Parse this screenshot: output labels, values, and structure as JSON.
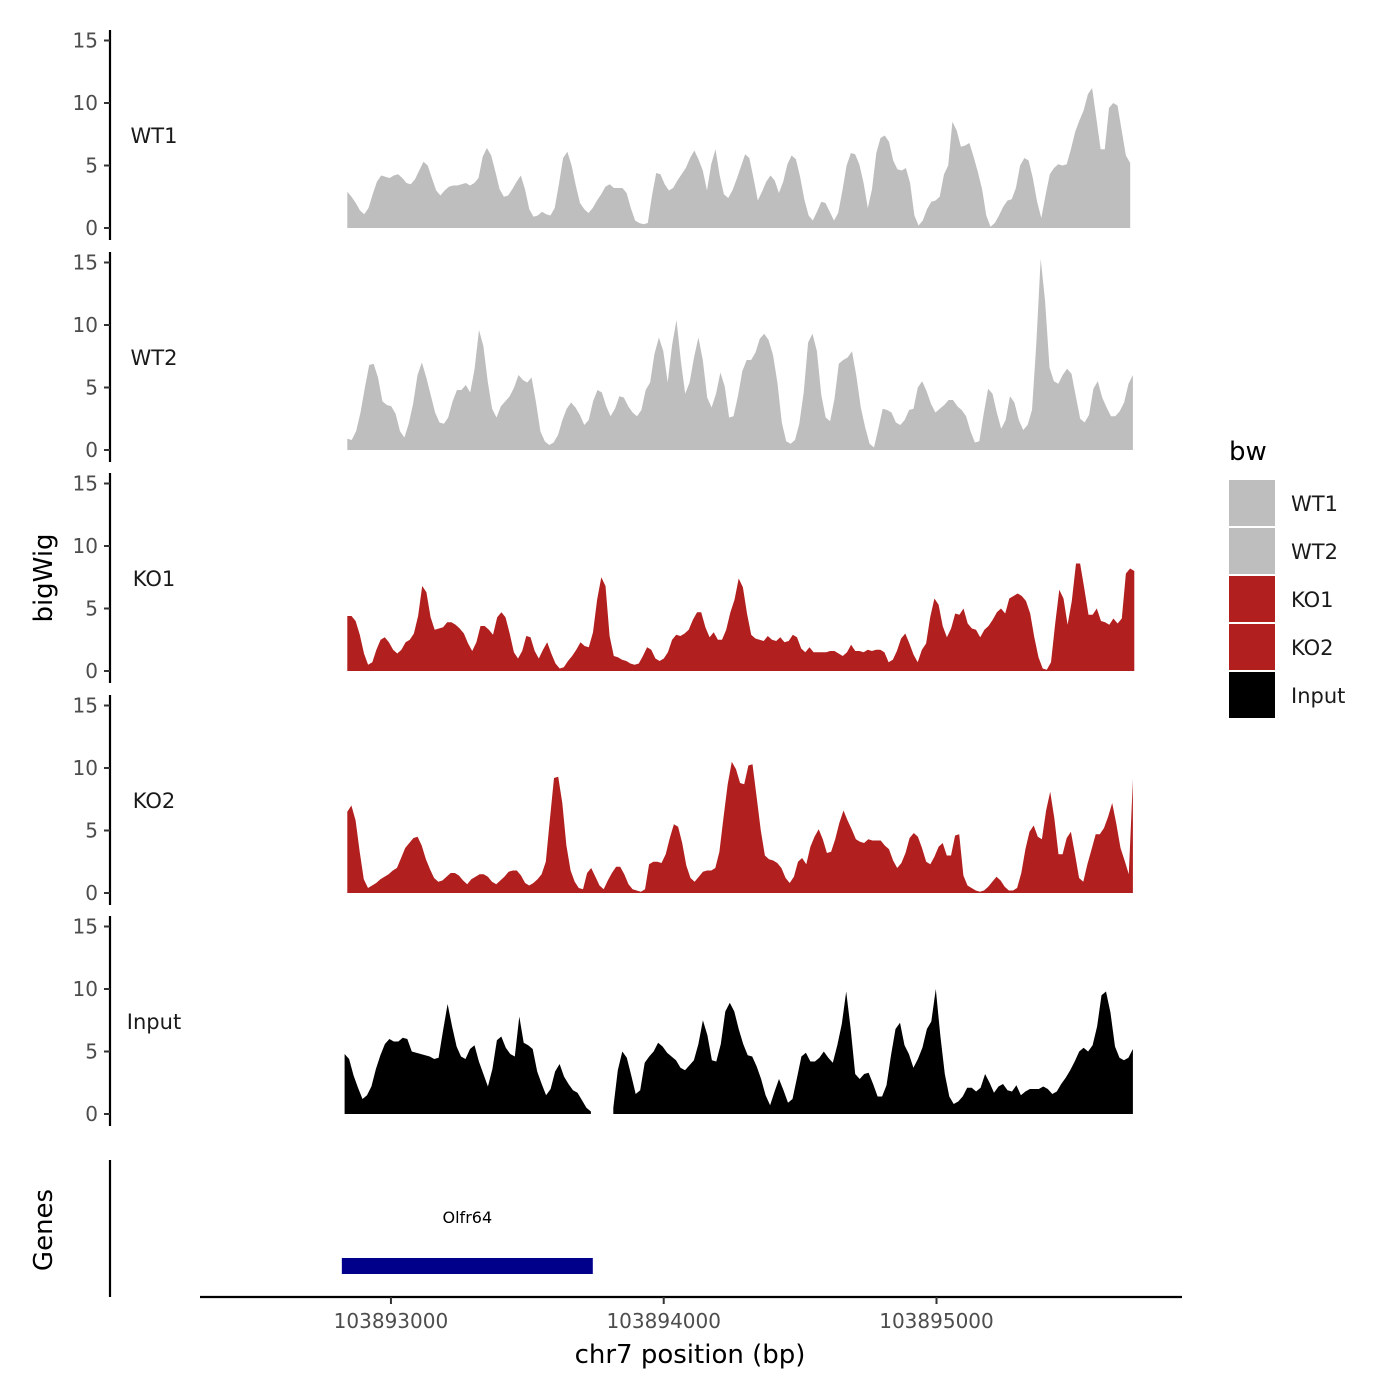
{
  "chart_data": {
    "type": "area",
    "ylabel": "bigWig",
    "xlabel": "chr7 position (bp)",
    "xlim": [
      103892300,
      103895900
    ],
    "ylim": [
      0,
      15
    ],
    "y_ticks": [
      0,
      5,
      10,
      15
    ],
    "x_ticks": [
      103893000,
      103894000,
      103895000
    ],
    "x_tick_labels": [
      "103893000",
      "103894000",
      "103895000"
    ],
    "legend": {
      "title": "bw",
      "placement": "right",
      "entries": [
        {
          "name": "WT1",
          "color": "#bebebe"
        },
        {
          "name": "WT2",
          "color": "#bebebe"
        },
        {
          "name": "KO1",
          "color": "#b21f1f"
        },
        {
          "name": "KO2",
          "color": "#b21f1f"
        },
        {
          "name": "Input",
          "color": "#000000"
        }
      ]
    },
    "genes_panel_label": "Genes",
    "genes": [
      {
        "name": "Olfr64",
        "start": 103892820,
        "end": 103893740,
        "color": "#00008b"
      }
    ],
    "series": [
      {
        "name": "WT1",
        "color": "#bebebe",
        "x_start": 103892840,
        "x_end": 103895710,
        "values": [
          2.9,
          2.5,
          2.0,
          1.4,
          1.1,
          1.6,
          2.7,
          3.7,
          4.2,
          4.1,
          4.0,
          4.2,
          4.3,
          4.0,
          3.6,
          3.5,
          3.9,
          4.6,
          5.3,
          5.0,
          4.0,
          3.0,
          2.6,
          3.0,
          3.3,
          3.4,
          3.4,
          3.5,
          3.6,
          3.4,
          3.6,
          4.0,
          5.7,
          6.4,
          5.8,
          4.5,
          3.1,
          2.5,
          2.6,
          3.1,
          3.7,
          4.2,
          3.1,
          1.5,
          0.9,
          1.0,
          1.3,
          1.1,
          1.0,
          1.6,
          3.5,
          5.6,
          6.1,
          5.0,
          3.4,
          2.0,
          1.5,
          1.2,
          1.6,
          2.2,
          2.7,
          3.3,
          3.5,
          3.2,
          3.2,
          3.2,
          2.8,
          1.6,
          0.6,
          0.4,
          0.3,
          0.4,
          2.6,
          4.4,
          4.3,
          3.5,
          3.0,
          3.2,
          3.8,
          4.3,
          4.8,
          5.6,
          6.2,
          5.5,
          4.6,
          3.0,
          5.1,
          6.3,
          4.2,
          2.7,
          2.4,
          3.0,
          3.9,
          4.9,
          5.9,
          5.6,
          4.0,
          2.2,
          2.9,
          3.7,
          4.2,
          3.8,
          2.8,
          3.7,
          5.1,
          5.8,
          5.5,
          4.1,
          2.3,
          1.0,
          0.6,
          1.3,
          2.1,
          2.0,
          1.3,
          0.6,
          1.2,
          3.0,
          5.0,
          6.0,
          5.9,
          5.1,
          3.6,
          1.6,
          3.1,
          6.0,
          7.2,
          7.4,
          6.9,
          5.4,
          4.7,
          4.6,
          4.8,
          3.6,
          1.0,
          0.2,
          0.6,
          1.5,
          2.1,
          2.2,
          2.5,
          4.3,
          5.0,
          8.5,
          7.8,
          6.5,
          6.6,
          6.8,
          5.7,
          4.5,
          3.1,
          1.0,
          0.1,
          0.4,
          1.0,
          1.7,
          2.2,
          2.3,
          3.2,
          5.0,
          5.6,
          5.4,
          4.0,
          2.1,
          0.8,
          2.6,
          4.3,
          4.8,
          5.1,
          5.0,
          5.1,
          6.3,
          7.7,
          8.6,
          9.4,
          10.7,
          11.2,
          8.8,
          6.3,
          6.3,
          9.6,
          10.0,
          9.8,
          7.8,
          5.8,
          5.2
        ]
      },
      {
        "name": "WT2",
        "color": "#bebebe",
        "x_start": 103892840,
        "x_end": 103895720,
        "values": [
          0.9,
          0.8,
          1.5,
          3.0,
          5.0,
          6.8,
          6.9,
          5.8,
          3.9,
          3.6,
          3.5,
          2.9,
          1.5,
          1.0,
          2.1,
          3.7,
          6.0,
          7.0,
          5.8,
          4.4,
          3.0,
          2.2,
          2.1,
          2.6,
          3.9,
          4.8,
          4.8,
          5.2,
          4.6,
          6.5,
          9.6,
          8.3,
          5.5,
          3.3,
          2.6,
          3.5,
          3.9,
          4.3,
          5.0,
          6.0,
          5.6,
          5.4,
          5.8,
          3.8,
          1.5,
          0.7,
          0.4,
          0.6,
          1.2,
          2.4,
          3.3,
          3.8,
          3.4,
          2.8,
          2.0,
          2.4,
          3.9,
          4.8,
          4.6,
          3.5,
          2.7,
          3.3,
          4.3,
          4.2,
          3.5,
          3.0,
          2.7,
          3.2,
          4.8,
          5.4,
          7.7,
          9.0,
          7.9,
          5.4,
          8.4,
          10.4,
          7.1,
          4.5,
          5.4,
          7.4,
          9.0,
          7.2,
          4.2,
          3.4,
          4.5,
          6.2,
          5.1,
          2.6,
          2.7,
          4.3,
          6.3,
          7.2,
          7.2,
          7.8,
          8.9,
          9.3,
          8.8,
          7.6,
          5.4,
          2.2,
          0.7,
          0.5,
          0.8,
          2.1,
          4.6,
          8.6,
          9.3,
          7.9,
          4.4,
          2.6,
          2.3,
          4.1,
          6.9,
          7.2,
          7.4,
          7.9,
          5.9,
          3.4,
          1.8,
          0.5,
          0.2,
          1.7,
          3.3,
          3.2,
          3.0,
          2.2,
          2.0,
          2.4,
          3.2,
          3.3,
          5.0,
          5.5,
          4.7,
          3.7,
          3.0,
          3.3,
          3.6,
          4.0,
          4.0,
          3.5,
          3.2,
          2.7,
          1.5,
          0.6,
          0.7,
          2.9,
          4.9,
          4.5,
          3.0,
          1.7,
          2.4,
          4.3,
          3.8,
          2.4,
          1.6,
          2.0,
          3.2,
          8.5,
          15.3,
          11.9,
          6.6,
          5.5,
          5.3,
          6.0,
          6.5,
          6.1,
          4.3,
          2.5,
          2.2,
          2.8,
          4.9,
          5.5,
          4.2,
          3.4,
          2.7,
          2.7,
          3.1,
          3.8,
          5.3,
          6.0
        ]
      },
      {
        "name": "KO1",
        "color": "#b21f1f",
        "x_start": 103892840,
        "x_end": 103895725,
        "values": [
          4.4,
          4.4,
          4.0,
          2.9,
          1.4,
          0.5,
          0.7,
          1.7,
          2.5,
          2.7,
          2.3,
          1.7,
          1.4,
          1.7,
          2.3,
          2.5,
          3.0,
          4.4,
          6.8,
          6.3,
          4.3,
          3.3,
          3.4,
          3.5,
          3.9,
          3.9,
          3.7,
          3.4,
          3.0,
          2.2,
          1.6,
          2.3,
          3.6,
          3.6,
          3.3,
          2.9,
          4.3,
          4.7,
          4.3,
          3.0,
          1.5,
          1.0,
          1.6,
          2.8,
          2.7,
          1.6,
          1.0,
          1.7,
          2.3,
          1.4,
          0.6,
          0.2,
          0.3,
          0.8,
          1.2,
          1.7,
          2.3,
          2.0,
          1.9,
          3.1,
          5.7,
          7.5,
          6.8,
          2.8,
          1.2,
          1.1,
          0.9,
          0.8,
          0.6,
          0.5,
          0.6,
          1.2,
          1.9,
          1.7,
          1.0,
          0.8,
          1.0,
          1.5,
          2.5,
          2.9,
          2.8,
          3.0,
          3.3,
          4.1,
          4.7,
          4.7,
          3.5,
          2.7,
          3.1,
          2.5,
          2.5,
          3.3,
          4.7,
          5.7,
          7.4,
          6.7,
          4.6,
          2.9,
          2.6,
          2.5,
          2.4,
          2.8,
          2.5,
          2.4,
          2.7,
          2.3,
          2.4,
          2.9,
          2.7,
          1.8,
          1.5,
          1.9,
          1.5,
          1.5,
          1.5,
          1.5,
          1.6,
          1.6,
          1.4,
          1.2,
          1.5,
          2.1,
          1.6,
          1.6,
          1.5,
          1.7,
          1.6,
          1.7,
          1.7,
          1.5,
          0.7,
          0.9,
          1.6,
          2.6,
          3.0,
          2.2,
          1.3,
          0.7,
          1.7,
          2.2,
          4.3,
          5.8,
          5.3,
          3.6,
          2.7,
          3.4,
          4.6,
          4.5,
          5.0,
          3.8,
          3.4,
          3.3,
          2.7,
          3.3,
          3.6,
          4.1,
          4.7,
          5.0,
          4.6,
          5.8,
          6.0,
          6.2,
          6.0,
          5.6,
          4.6,
          2.7,
          1.1,
          0.2,
          0.1,
          0.7,
          3.8,
          6.5,
          5.8,
          3.7,
          5.6,
          8.6,
          8.6,
          6.6,
          4.5,
          4.5,
          5.0,
          4.0,
          3.9,
          3.7,
          4.2,
          3.8,
          4.2,
          7.8,
          8.2,
          8.0
        ]
      },
      {
        "name": "KO2",
        "color": "#b21f1f",
        "x_start": 103892840,
        "x_end": 103895720,
        "values": [
          6.5,
          7.0,
          5.8,
          3.3,
          1.1,
          0.4,
          0.6,
          0.8,
          1.1,
          1.3,
          1.5,
          1.8,
          2.0,
          2.8,
          3.6,
          4.0,
          4.4,
          4.5,
          3.8,
          2.7,
          1.9,
          1.2,
          0.9,
          1.0,
          1.3,
          1.6,
          1.6,
          1.4,
          1.0,
          0.7,
          1.1,
          1.3,
          1.5,
          1.5,
          1.3,
          0.9,
          0.7,
          1.0,
          1.3,
          1.7,
          1.8,
          1.8,
          1.4,
          0.8,
          0.6,
          0.8,
          1.1,
          1.5,
          2.5,
          5.9,
          9.2,
          9.3,
          7.2,
          3.8,
          1.8,
          0.9,
          0.4,
          0.3,
          1.6,
          2.0,
          1.3,
          0.6,
          0.3,
          1.0,
          1.6,
          2.1,
          2.1,
          1.5,
          0.7,
          0.3,
          0.2,
          0.1,
          0.3,
          2.3,
          2.5,
          2.5,
          2.4,
          3.1,
          4.4,
          5.5,
          5.3,
          4.0,
          2.2,
          1.2,
          0.9,
          1.3,
          1.7,
          1.8,
          1.8,
          2.0,
          3.3,
          6.1,
          8.7,
          10.5,
          9.9,
          8.8,
          8.7,
          10.2,
          10.3,
          7.7,
          5.0,
          3.0,
          2.7,
          2.6,
          2.4,
          2.0,
          1.2,
          0.8,
          1.3,
          2.5,
          2.8,
          2.3,
          3.7,
          4.5,
          5.1,
          4.3,
          3.2,
          3.3,
          4.3,
          5.6,
          6.6,
          5.8,
          5.1,
          4.3,
          4.1,
          4.0,
          4.3,
          4.2,
          4.2,
          4.2,
          3.8,
          3.5,
          2.6,
          2.0,
          2.4,
          3.2,
          4.4,
          4.8,
          4.5,
          3.6,
          2.5,
          2.3,
          2.9,
          3.7,
          4.0,
          3.0,
          3.0,
          4.6,
          4.7,
          1.4,
          0.6,
          0.4,
          0.2,
          0.1,
          0.2,
          0.5,
          0.9,
          1.3,
          1.0,
          0.5,
          0.2,
          0.2,
          0.4,
          1.6,
          3.5,
          4.9,
          5.4,
          4.5,
          4.3,
          6.6,
          8.1,
          6.0,
          3.1,
          3.1,
          4.4,
          4.9,
          3.1,
          1.2,
          0.9,
          2.3,
          3.5,
          4.7,
          4.7,
          5.2,
          6.1,
          7.2,
          5.5,
          3.6,
          2.6,
          1.5,
          9.1
        ]
      },
      {
        "name": "Input",
        "color": "#000000",
        "x_start": 103892830,
        "x_end": 103895720,
        "gap": [
          103893740,
          103893800
        ],
        "values": [
          4.8,
          4.4,
          3.1,
          2.1,
          1.2,
          1.5,
          2.2,
          3.6,
          4.7,
          5.6,
          6.0,
          5.8,
          5.8,
          6.1,
          6.0,
          5.0,
          4.9,
          4.8,
          4.7,
          4.6,
          4.4,
          4.5,
          6.7,
          8.8,
          7.0,
          5.4,
          4.6,
          4.4,
          5.2,
          5.5,
          4.2,
          3.2,
          2.2,
          3.6,
          5.9,
          6.2,
          5.3,
          4.8,
          4.6,
          7.8,
          5.7,
          5.5,
          5.2,
          3.4,
          2.4,
          1.5,
          2.0,
          3.4,
          4.0,
          3.0,
          2.4,
          1.9,
          1.7,
          1.1,
          0.5,
          0.2,
          0.1,
          0.0,
          0.0,
          0.0,
          0.5,
          3.5,
          5.0,
          4.5,
          3.1,
          1.6,
          1.9,
          4.1,
          4.6,
          5.0,
          5.7,
          5.4,
          4.9,
          4.6,
          4.3,
          3.7,
          3.5,
          3.9,
          4.3,
          5.6,
          7.5,
          6.3,
          4.3,
          4.2,
          5.6,
          8.2,
          8.9,
          8.2,
          6.8,
          5.6,
          4.7,
          4.6,
          3.8,
          2.8,
          1.5,
          0.7,
          1.8,
          2.8,
          1.9,
          0.9,
          1.2,
          2.9,
          4.6,
          4.9,
          4.2,
          4.2,
          4.5,
          5.0,
          4.5,
          4.1,
          5.5,
          7.2,
          9.8,
          6.8,
          3.2,
          2.8,
          3.2,
          3.3,
          2.4,
          1.4,
          1.4,
          2.3,
          4.7,
          6.8,
          7.3,
          5.5,
          4.8,
          3.7,
          4.4,
          5.3,
          6.8,
          7.4,
          10.0,
          6.3,
          3.2,
          1.4,
          0.8,
          1.0,
          1.4,
          2.1,
          2.1,
          1.8,
          2.1,
          3.2,
          2.5,
          1.7,
          2.2,
          2.4,
          1.9,
          1.8,
          2.3,
          1.5,
          1.8,
          2.0,
          2.0,
          2.0,
          2.2,
          2.0,
          1.6,
          1.8,
          2.4,
          2.9,
          3.5,
          4.2,
          5.0,
          5.3,
          5.0,
          5.5,
          7.0,
          9.5,
          9.8,
          8.1,
          5.4,
          4.5,
          4.3,
          4.5,
          5.2
        ]
      }
    ]
  }
}
